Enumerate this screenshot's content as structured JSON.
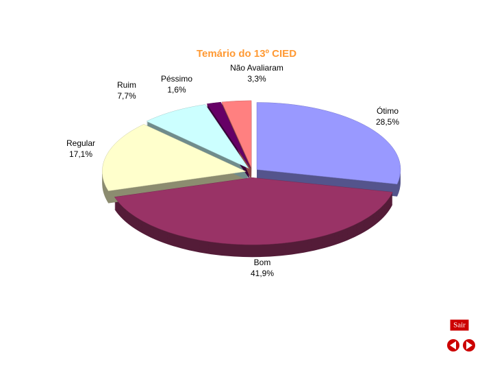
{
  "chart_data": {
    "type": "pie",
    "title": "Temário do 13º CIED",
    "categories": [
      "Ótimo",
      "Bom",
      "Regular",
      "Ruim",
      "Péssimo",
      "Não Avaliaram"
    ],
    "values": [
      28.5,
      41.9,
      17.1,
      7.7,
      1.6,
      3.3
    ],
    "value_labels": [
      "28,5%",
      "41,9%",
      "17,1%",
      "7,7%",
      "1,6%",
      "3,3%"
    ],
    "colors": [
      "#9999ff",
      "#993366",
      "#ffffcc",
      "#ccffff",
      "#660066",
      "#ff8080"
    ]
  },
  "controls": {
    "exit": "Sair"
  }
}
